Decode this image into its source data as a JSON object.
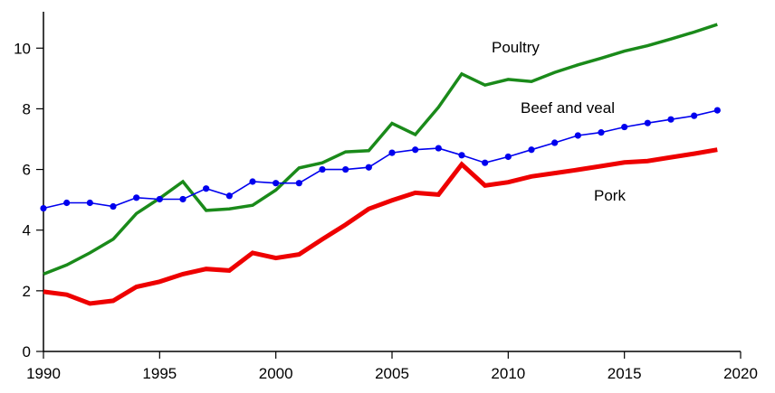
{
  "chart_data": {
    "type": "line",
    "title": "",
    "xlabel": "",
    "ylabel": "",
    "xlim": [
      1990,
      2020
    ],
    "ylim": [
      0,
      11.2
    ],
    "xticks": [
      1990,
      1995,
      2000,
      2005,
      2010,
      2015,
      2020
    ],
    "yticks": [
      0,
      2,
      4,
      6,
      8,
      10
    ],
    "grid": false,
    "legend": "inline labels",
    "x": [
      1990,
      1991,
      1992,
      1993,
      1994,
      1995,
      1996,
      1997,
      1998,
      1999,
      2000,
      2001,
      2002,
      2003,
      2004,
      2005,
      2006,
      2007,
      2008,
      2009,
      2010,
      2011,
      2012,
      2013,
      2014,
      2015,
      2016,
      2017,
      2018,
      2019
    ],
    "series": [
      {
        "name": "Poultry",
        "color": "#1a8a1a",
        "marker": "none",
        "values": [
          2.55,
          2.85,
          3.25,
          3.7,
          4.55,
          5.05,
          5.6,
          4.65,
          4.7,
          4.82,
          5.32,
          6.05,
          6.22,
          6.58,
          6.62,
          7.52,
          7.15,
          8.05,
          9.15,
          8.78,
          8.97,
          8.9,
          9.2,
          9.45,
          9.67,
          9.9,
          10.08,
          10.3,
          10.53,
          10.78
        ]
      },
      {
        "name": "Beef and veal",
        "color": "#0000ee",
        "marker": "circle",
        "values": [
          4.72,
          4.9,
          4.9,
          4.78,
          5.07,
          5.02,
          5.02,
          5.37,
          5.13,
          5.6,
          5.55,
          5.55,
          6.0,
          6.0,
          6.07,
          6.55,
          6.65,
          6.7,
          6.47,
          6.22,
          6.42,
          6.65,
          6.88,
          7.12,
          7.22,
          7.4,
          7.53,
          7.65,
          7.77,
          7.95
        ]
      },
      {
        "name": "Pork",
        "color": "#ee0000",
        "marker": "none",
        "values": [
          1.97,
          1.87,
          1.58,
          1.67,
          2.13,
          2.3,
          2.55,
          2.72,
          2.67,
          3.25,
          3.08,
          3.2,
          3.7,
          4.18,
          4.7,
          4.98,
          5.23,
          5.17,
          6.17,
          5.47,
          5.58,
          5.77,
          5.88,
          5.99,
          6.11,
          6.23,
          6.28,
          6.4,
          6.52,
          6.65
        ]
      }
    ]
  }
}
